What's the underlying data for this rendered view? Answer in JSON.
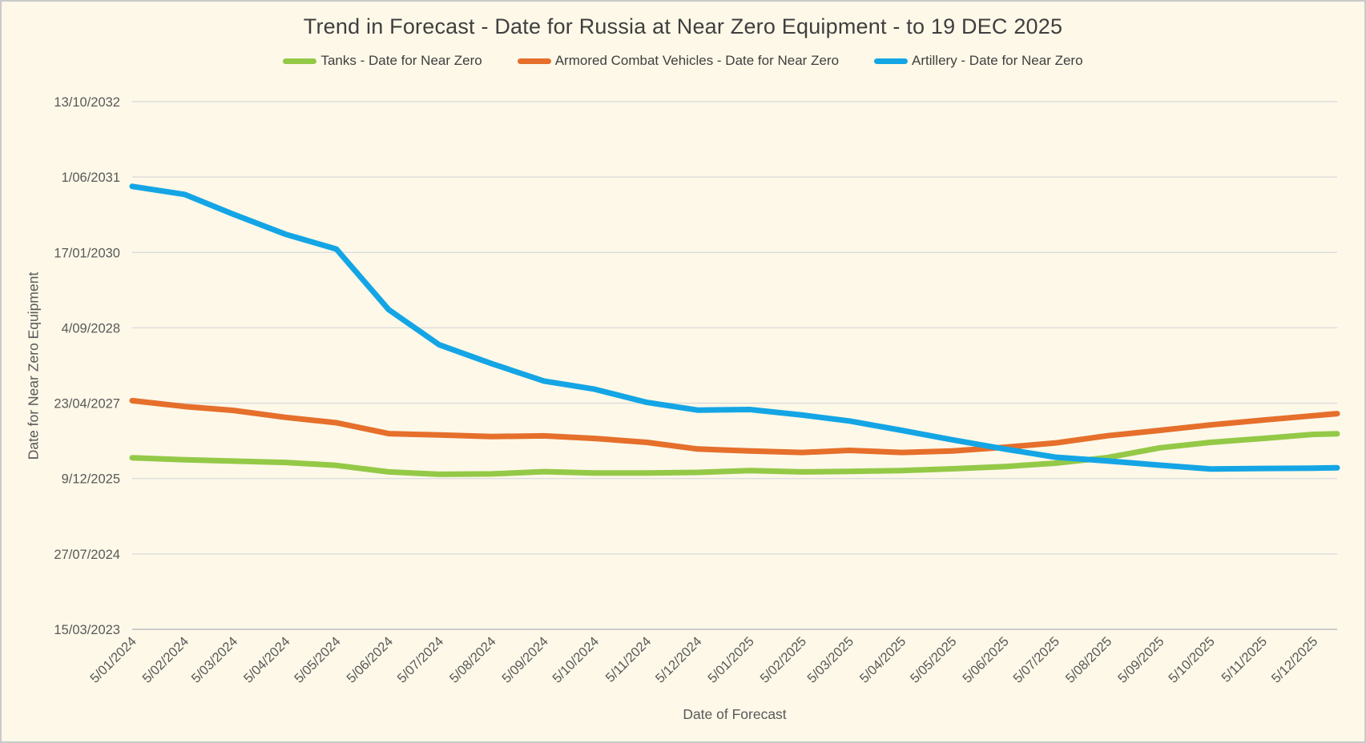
{
  "window": {
    "background": "#FDF8E8",
    "border_color": "#C9C9C9"
  },
  "chart_data": {
    "type": "line",
    "title": "Trend in Forecast - Date for Russia at Near Zero Equipment - to 19 DEC 2025",
    "xlabel": "Date of Forecast",
    "ylabel": "Date for Near Zero Equipment",
    "grid": {
      "color": "#DCDCDC",
      "axis_line_color": "#C6C6C6",
      "grid_on": true
    },
    "legend_position": "top",
    "x": [
      "5/01/2024",
      "5/02/2024",
      "5/03/2024",
      "5/04/2024",
      "5/05/2024",
      "5/06/2024",
      "5/07/2024",
      "5/08/2024",
      "5/09/2024",
      "5/10/2024",
      "5/11/2024",
      "5/12/2024",
      "5/01/2025",
      "5/02/2025",
      "5/03/2025",
      "5/04/2025",
      "5/05/2025",
      "5/06/2025",
      "5/07/2025",
      "5/08/2025",
      "5/09/2025",
      "5/10/2025",
      "5/11/2025",
      "5/12/2025",
      "19/12/2025"
    ],
    "x_tick_labels": [
      "5/01/2024",
      "5/02/2024",
      "5/03/2024",
      "5/04/2024",
      "5/05/2024",
      "5/06/2024",
      "5/07/2024",
      "5/08/2024",
      "5/09/2024",
      "5/10/2024",
      "5/11/2024",
      "5/12/2024",
      "5/01/2025",
      "5/02/2025",
      "5/03/2025",
      "5/04/2025",
      "5/05/2025",
      "5/06/2025",
      "5/07/2025",
      "5/08/2025",
      "5/09/2025",
      "5/10/2025",
      "5/11/2025",
      "5/12/2025"
    ],
    "y_axis": {
      "min": "2023-03-15",
      "max": "2032-10-13",
      "interval_days": 500,
      "ticks": [
        {
          "label": "15/03/2023",
          "date": "2023-03-15"
        },
        {
          "label": "27/07/2024",
          "date": "2024-07-27"
        },
        {
          "label": "9/12/2025",
          "date": "2025-12-09"
        },
        {
          "label": "23/04/2027",
          "date": "2027-04-23"
        },
        {
          "label": "4/09/2028",
          "date": "2028-09-04"
        },
        {
          "label": "17/01/2030",
          "date": "2030-01-17"
        },
        {
          "label": "1/06/2031",
          "date": "2031-06-01"
        },
        {
          "label": "13/10/2032",
          "date": "2032-10-13"
        }
      ]
    },
    "series": [
      {
        "id": "tanks",
        "name": "Tanks - Date for Near Zero",
        "color": "#94C947",
        "values": [
          "2026-04-26",
          "2026-04-13",
          "2026-04-04",
          "2026-03-26",
          "2026-03-06",
          "2026-01-22",
          "2026-01-06",
          "2026-01-09",
          "2026-01-24",
          "2026-01-15",
          "2026-01-15",
          "2026-01-19",
          "2026-01-31",
          "2026-01-22",
          "2026-01-26",
          "2026-01-31",
          "2026-02-12",
          "2026-02-27",
          "2026-03-21",
          "2026-04-27",
          "2026-07-01",
          "2026-08-06",
          "2026-09-01",
          "2026-09-28",
          "2026-10-02"
        ]
      },
      {
        "id": "acv",
        "name": "Armored Combat Vehicles - Date for Near Zero",
        "color": "#E56F2B",
        "values": [
          "2027-05-10",
          "2027-04-01",
          "2027-03-06",
          "2027-01-19",
          "2026-12-14",
          "2026-10-03",
          "2026-09-24",
          "2026-09-14",
          "2026-09-18",
          "2026-09-01",
          "2026-08-06",
          "2026-06-23",
          "2026-06-10",
          "2026-05-31",
          "2026-06-14",
          "2026-05-31",
          "2026-06-10",
          "2026-07-05",
          "2026-08-02",
          "2026-09-19",
          "2026-10-25",
          "2026-11-30",
          "2027-01-01",
          "2027-01-30",
          "2027-02-13"
        ]
      },
      {
        "id": "artillery",
        "name": "Artillery - Date for Near Zero",
        "color": "#14A5E5",
        "values": [
          "2031-03-31",
          "2031-02-06",
          "2030-09-27",
          "2030-05-17",
          "2030-02-08",
          "2029-01-02",
          "2028-05-14",
          "2028-01-10",
          "2027-09-17",
          "2027-07-25",
          "2027-04-28",
          "2027-03-08",
          "2027-03-12",
          "2027-02-03",
          "2026-12-26",
          "2026-10-25",
          "2026-08-23",
          "2026-06-23",
          "2026-04-30",
          "2026-04-05",
          "2026-03-08",
          "2026-02-11",
          "2026-02-14",
          "2026-02-16",
          "2026-02-18"
        ]
      }
    ]
  }
}
